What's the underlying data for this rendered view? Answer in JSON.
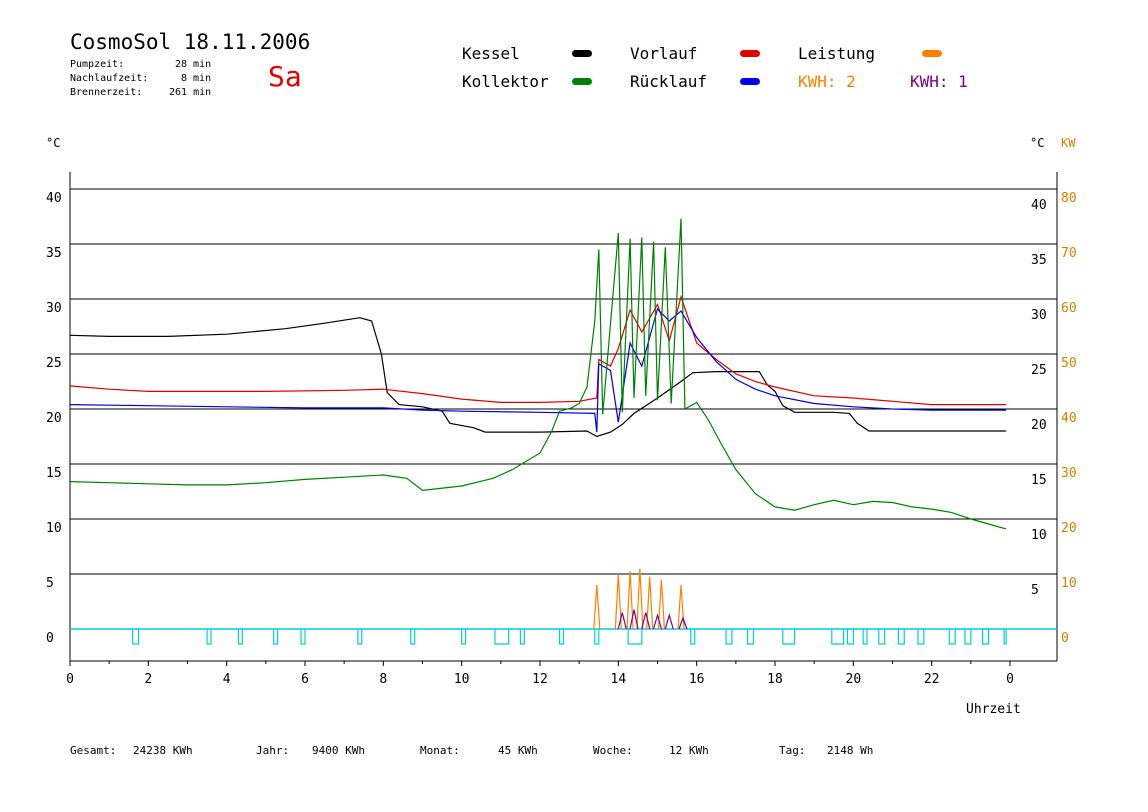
{
  "header": {
    "title": "CosmoSol 18.11.2006",
    "day": "Sa",
    "stats": [
      {
        "label": "Pumpzeit:",
        "value": "28 min"
      },
      {
        "label": "Nachlaufzeit:",
        "value": "8 min"
      },
      {
        "label": "Brennerzeit:",
        "value": "261 min"
      }
    ]
  },
  "legend": {
    "kessel": {
      "label": "Kessel",
      "color": "#000000"
    },
    "kollektor": {
      "label": "Kollektor",
      "color": "#008000"
    },
    "vorlauf": {
      "label": "Vorlauf",
      "color": "#e00000"
    },
    "ruecklauf": {
      "label": "Rücklauf",
      "color": "#0000e0"
    },
    "leistung": {
      "label": "Leistung",
      "color": "#ff8000"
    },
    "kwh1": {
      "label": "KWH: 2",
      "color": "#ff8000"
    },
    "kwh2": {
      "label": "KWH: 1",
      "color": "#800080"
    }
  },
  "axes": {
    "left_unit": "°C",
    "right_unit_c": "°C",
    "right_unit_kw": "KW",
    "x_title": "Uhrzeit"
  },
  "footer": {
    "gesamt": {
      "label": "Gesamt:",
      "value": "24238 KWh"
    },
    "jahr": {
      "label": "Jahr:",
      "value": "9400 KWh"
    },
    "monat": {
      "label": "Monat:",
      "value": "45 KWh"
    },
    "woche": {
      "label": "Woche:",
      "value": "12 KWh"
    },
    "tag": {
      "label": "Tag:",
      "value": "2148 Wh"
    }
  },
  "chart_data": {
    "type": "line",
    "xlim": [
      0,
      24
    ],
    "ylim": [
      0,
      40
    ],
    "y2lim": [
      0,
      80
    ],
    "grid": true,
    "x_ticks": [
      "0",
      "2",
      "4",
      "6",
      "8",
      "10",
      "12",
      "14",
      "16",
      "18",
      "20",
      "22",
      "0"
    ],
    "y_ticks_left": [
      "0",
      "5",
      "10",
      "15",
      "20",
      "25",
      "30",
      "35",
      "40"
    ],
    "y_ticks_right_c": [
      "5",
      "10",
      "15",
      "20",
      "25",
      "30",
      "35",
      "40"
    ],
    "y_ticks_right_kw": [
      "0",
      "10",
      "20",
      "30",
      "40",
      "50",
      "60",
      "70",
      "80"
    ],
    "series": [
      {
        "name": "Kessel",
        "color": "#000000",
        "points": [
          [
            0,
            26.7
          ],
          [
            1,
            26.6
          ],
          [
            2.5,
            26.6
          ],
          [
            4,
            26.8
          ],
          [
            5.5,
            27.3
          ],
          [
            6.5,
            27.8
          ],
          [
            7.4,
            28.3
          ],
          [
            7.7,
            28.0
          ],
          [
            7.95,
            25
          ],
          [
            8.1,
            21.5
          ],
          [
            8.4,
            20.4
          ],
          [
            9,
            20.2
          ],
          [
            9.5,
            19.8
          ],
          [
            9.7,
            18.7
          ],
          [
            10.3,
            18.3
          ],
          [
            10.6,
            17.9
          ],
          [
            12,
            17.9
          ],
          [
            13.2,
            18.0
          ],
          [
            13.45,
            17.5
          ],
          [
            13.8,
            17.9
          ],
          [
            14.1,
            18.6
          ],
          [
            14.4,
            19.6
          ],
          [
            15,
            21.0
          ],
          [
            15.6,
            22.5
          ],
          [
            15.9,
            23.3
          ],
          [
            16.5,
            23.4
          ],
          [
            17.6,
            23.4
          ],
          [
            17.8,
            22.2
          ],
          [
            18.0,
            21.6
          ],
          [
            18.2,
            20.3
          ],
          [
            18.5,
            19.7
          ],
          [
            19.5,
            19.7
          ],
          [
            19.9,
            19.6
          ],
          [
            20.1,
            18.7
          ],
          [
            20.4,
            18.0
          ],
          [
            21.5,
            18.0
          ],
          [
            23.9,
            18.0
          ]
        ]
      },
      {
        "name": "Vorlauf",
        "color": "#e00000",
        "points": [
          [
            0,
            22.1
          ],
          [
            1,
            21.8
          ],
          [
            2,
            21.6
          ],
          [
            5,
            21.6
          ],
          [
            7,
            21.7
          ],
          [
            8,
            21.8
          ],
          [
            9,
            21.4
          ],
          [
            10,
            20.9
          ],
          [
            11,
            20.6
          ],
          [
            12,
            20.6
          ],
          [
            13,
            20.7
          ],
          [
            13.45,
            21.0
          ],
          [
            13.5,
            24.5
          ],
          [
            13.8,
            23.9
          ],
          [
            14,
            25.5
          ],
          [
            14.3,
            29
          ],
          [
            14.6,
            27
          ],
          [
            15,
            29.5
          ],
          [
            15.3,
            26.2
          ],
          [
            15.6,
            30.2
          ],
          [
            16,
            26
          ],
          [
            16.5,
            24.5
          ],
          [
            17,
            23.2
          ],
          [
            17.5,
            22.5
          ],
          [
            18,
            22
          ],
          [
            19,
            21.2
          ],
          [
            20,
            21
          ],
          [
            21,
            20.7
          ],
          [
            22,
            20.4
          ],
          [
            23.9,
            20.4
          ]
        ]
      },
      {
        "name": "Rücklauf",
        "color": "#0000e0",
        "points": [
          [
            0,
            20.4
          ],
          [
            2,
            20.3
          ],
          [
            4,
            20.2
          ],
          [
            6,
            20.1
          ],
          [
            8,
            20.1
          ],
          [
            9,
            19.9
          ],
          [
            10,
            19.8
          ],
          [
            12,
            19.7
          ],
          [
            13.4,
            19.6
          ],
          [
            13.45,
            17.9
          ],
          [
            13.5,
            24.1
          ],
          [
            13.8,
            23.5
          ],
          [
            14.0,
            18.8
          ],
          [
            14.3,
            26
          ],
          [
            14.6,
            23.9
          ],
          [
            15,
            29.1
          ],
          [
            15.3,
            28
          ],
          [
            15.6,
            28.9
          ],
          [
            16,
            26.5
          ],
          [
            16.5,
            24.3
          ],
          [
            17,
            22.7
          ],
          [
            17.5,
            21.8
          ],
          [
            18,
            21.2
          ],
          [
            19,
            20.5
          ],
          [
            20,
            20.2
          ],
          [
            21,
            20.0
          ],
          [
            22,
            19.9
          ],
          [
            23.9,
            19.9
          ]
        ]
      },
      {
        "name": "Kollektor",
        "color": "#008000",
        "points": [
          [
            0,
            13.4
          ],
          [
            1,
            13.3
          ],
          [
            2,
            13.2
          ],
          [
            3,
            13.1
          ],
          [
            4,
            13.1
          ],
          [
            5,
            13.3
          ],
          [
            6,
            13.6
          ],
          [
            7,
            13.8
          ],
          [
            8,
            14.0
          ],
          [
            8.6,
            13.7
          ],
          [
            9,
            12.6
          ],
          [
            10,
            13.0
          ],
          [
            10.8,
            13.7
          ],
          [
            11.3,
            14.5
          ],
          [
            12,
            16.0
          ],
          [
            12.3,
            18
          ],
          [
            12.5,
            19.8
          ],
          [
            12.8,
            20.1
          ],
          [
            13,
            20.5
          ],
          [
            13.2,
            22
          ],
          [
            13.4,
            28
          ],
          [
            13.5,
            34.5
          ],
          [
            13.6,
            19.5
          ],
          [
            14,
            36
          ],
          [
            14.1,
            19.7
          ],
          [
            14.3,
            35.5
          ],
          [
            14.4,
            21
          ],
          [
            14.6,
            35.6
          ],
          [
            14.7,
            21.2
          ],
          [
            14.9,
            35.2
          ],
          [
            15,
            20.8
          ],
          [
            15.2,
            34.7
          ],
          [
            15.35,
            20.5
          ],
          [
            15.6,
            37.3
          ],
          [
            15.7,
            20
          ],
          [
            16,
            20.6
          ],
          [
            16.3,
            19
          ],
          [
            16.6,
            17
          ],
          [
            17,
            14.5
          ],
          [
            17.5,
            12.3
          ],
          [
            18,
            11.1
          ],
          [
            18.5,
            10.8
          ],
          [
            19,
            11.3
          ],
          [
            19.5,
            11.7
          ],
          [
            20,
            11.3
          ],
          [
            20.5,
            11.6
          ],
          [
            21,
            11.5
          ],
          [
            21.5,
            11.1
          ],
          [
            22,
            10.9
          ],
          [
            22.5,
            10.6
          ],
          [
            23,
            10.0
          ],
          [
            23.5,
            9.5
          ],
          [
            23.9,
            9.1
          ]
        ]
      }
    ],
    "leistung_peaks_kw": [
      [
        13.45,
        8
      ],
      [
        14.0,
        10
      ],
      [
        14.3,
        10.5
      ],
      [
        14.55,
        11
      ],
      [
        14.8,
        9.5
      ],
      [
        15.1,
        9
      ],
      [
        15.6,
        8
      ]
    ],
    "kwh_peaks_kw": [
      [
        14.1,
        3
      ],
      [
        14.4,
        3.5
      ],
      [
        14.7,
        3
      ],
      [
        15.0,
        2.5
      ],
      [
        15.3,
        2.5
      ],
      [
        15.65,
        2
      ]
    ],
    "pump_pulses": [
      [
        1.6,
        1.75
      ],
      [
        3.5,
        3.6
      ],
      [
        4.3,
        4.4
      ],
      [
        5.2,
        5.3
      ],
      [
        5.9,
        6.0
      ],
      [
        7.35,
        7.45
      ],
      [
        8.7,
        8.8
      ],
      [
        10.0,
        10.1
      ],
      [
        10.85,
        11.2
      ],
      [
        11.5,
        11.6
      ],
      [
        12.5,
        12.6
      ],
      [
        13.4,
        13.5
      ],
      [
        14.25,
        14.6
      ],
      [
        15.85,
        15.95
      ],
      [
        16.75,
        16.9
      ],
      [
        17.3,
        17.45
      ],
      [
        18.2,
        18.5
      ],
      [
        19.45,
        19.75
      ],
      [
        19.85,
        20.0
      ],
      [
        20.25,
        20.35
      ],
      [
        20.65,
        20.8
      ],
      [
        21.15,
        21.3
      ],
      [
        21.65,
        21.8
      ],
      [
        22.45,
        22.6
      ],
      [
        22.85,
        23.0
      ],
      [
        23.3,
        23.45
      ],
      [
        23.85,
        23.9
      ]
    ]
  }
}
